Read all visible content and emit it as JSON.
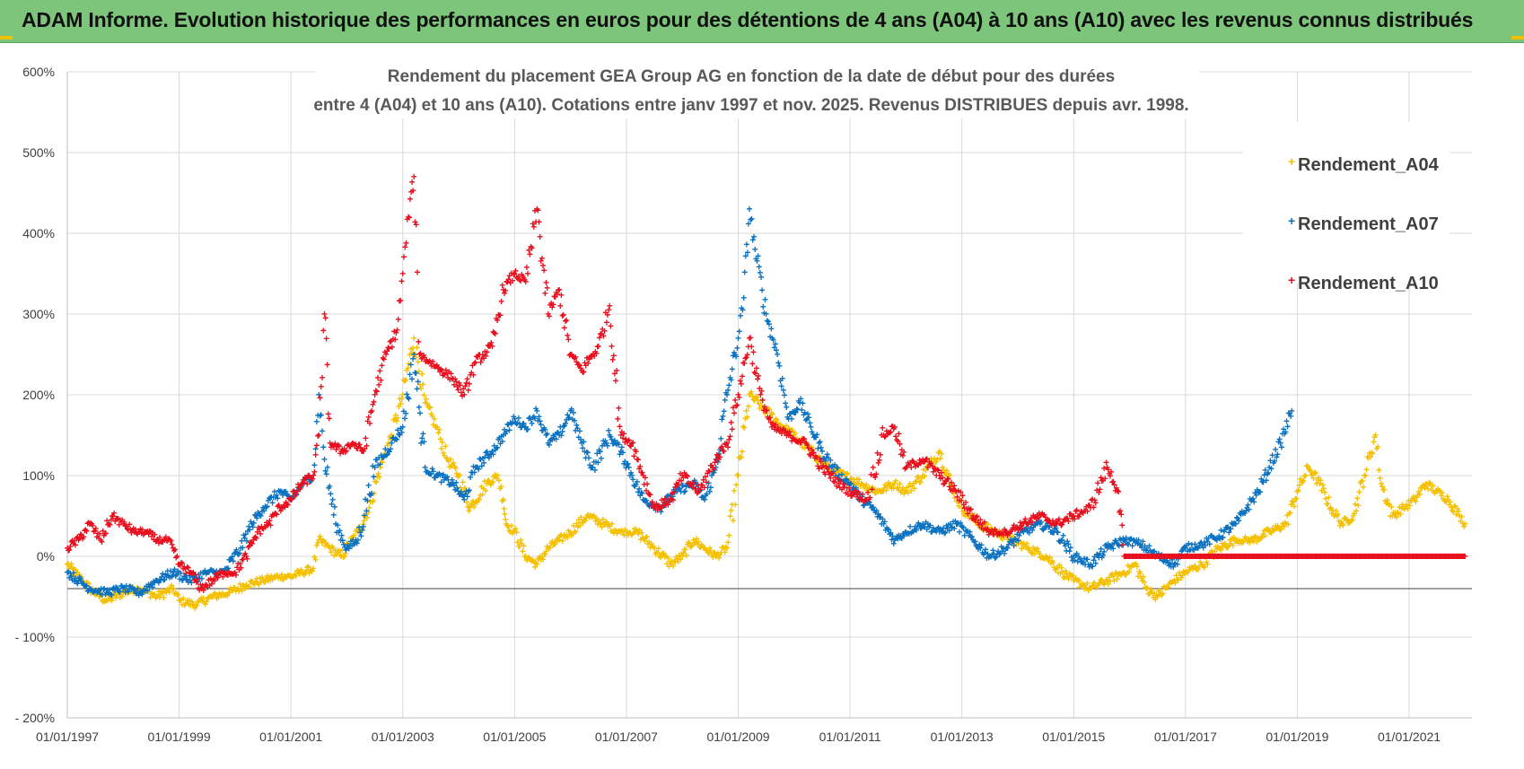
{
  "header": {
    "title": "ADAM Informe. Evolution historique des performances en euros pour des détentions de 4 ans (A04) à 10 ans (A10) avec les revenus connus distribués"
  },
  "colors": {
    "banner": "#7dc57a",
    "A04": "#f5c000",
    "A07": "#0b72c1",
    "A10": "#e8101e",
    "grid": "#d9d9d9"
  },
  "chart_data": {
    "type": "scatter",
    "title_line1": "Rendement du placement GEA Group AG en fonction de la date de début pour des durées",
    "title_line2": "entre 4 (A04) et 10 ans (A10). Cotations entre janv 1997 et nov. 2025. Revenus DISTRIBUES depuis avr. 1998.",
    "x_ticks": [
      "01/01/1997",
      "01/01/1999",
      "01/01/2001",
      "01/01/2003",
      "01/01/2005",
      "01/01/2007",
      "01/01/2009",
      "01/01/2011",
      "01/01/2013",
      "01/01/2015",
      "01/01/2017",
      "01/01/2019",
      "01/01/2021"
    ],
    "y_ticks": [
      "600%",
      "500%",
      "400%",
      "300%",
      "200%",
      "100%",
      "0%",
      "- 100%",
      "- 200%"
    ],
    "xlim": [
      "1997-01-01",
      "2022-02-15"
    ],
    "ylim": [
      -200,
      600
    ],
    "legend_position": "top-right",
    "grid": true,
    "series": [
      {
        "name": "Rendement_A04",
        "color_key": "A04",
        "points": [
          [
            1997.0,
            -10
          ],
          [
            1997.2,
            -25
          ],
          [
            1997.4,
            -40
          ],
          [
            1997.7,
            -55
          ],
          [
            1998.0,
            -45
          ],
          [
            1998.3,
            -40
          ],
          [
            1998.6,
            -50
          ],
          [
            1998.9,
            -40
          ],
          [
            1999.0,
            -55
          ],
          [
            1999.3,
            -60
          ],
          [
            1999.6,
            -50
          ],
          [
            1999.9,
            -45
          ],
          [
            2000.2,
            -35
          ],
          [
            2000.5,
            -30
          ],
          [
            2000.8,
            -25
          ],
          [
            2001.0,
            -25
          ],
          [
            2001.2,
            -20
          ],
          [
            2001.4,
            -15
          ],
          [
            2001.5,
            20
          ],
          [
            2001.7,
            10
          ],
          [
            2001.9,
            0
          ],
          [
            2002.2,
            30
          ],
          [
            2002.4,
            60
          ],
          [
            2002.6,
            110
          ],
          [
            2002.8,
            150
          ],
          [
            2003.0,
            200
          ],
          [
            2003.2,
            270
          ],
          [
            2003.4,
            190
          ],
          [
            2003.6,
            160
          ],
          [
            2003.8,
            120
          ],
          [
            2004.0,
            100
          ],
          [
            2004.2,
            60
          ],
          [
            2004.5,
            90
          ],
          [
            2004.7,
            100
          ],
          [
            2004.8,
            70
          ],
          [
            2004.85,
            40
          ],
          [
            2005.0,
            30
          ],
          [
            2005.2,
            0
          ],
          [
            2005.4,
            -10
          ],
          [
            2005.6,
            10
          ],
          [
            2005.8,
            20
          ],
          [
            2006.0,
            30
          ],
          [
            2006.3,
            50
          ],
          [
            2006.6,
            40
          ],
          [
            2006.9,
            30
          ],
          [
            2007.2,
            30
          ],
          [
            2007.5,
            10
          ],
          [
            2007.8,
            -10
          ],
          [
            2008.0,
            0
          ],
          [
            2008.2,
            20
          ],
          [
            2008.4,
            10
          ],
          [
            2008.6,
            0
          ],
          [
            2008.8,
            10
          ],
          [
            2009.0,
            100
          ],
          [
            2009.2,
            200
          ],
          [
            2009.5,
            180
          ],
          [
            2009.8,
            160
          ],
          [
            2010.0,
            150
          ],
          [
            2010.3,
            130
          ],
          [
            2010.6,
            110
          ],
          [
            2010.9,
            100
          ],
          [
            2011.2,
            90
          ],
          [
            2011.5,
            80
          ],
          [
            2011.8,
            90
          ],
          [
            2012.0,
            80
          ],
          [
            2012.3,
            100
          ],
          [
            2012.6,
            130
          ],
          [
            2012.8,
            90
          ],
          [
            2013.0,
            60
          ],
          [
            2013.3,
            40
          ],
          [
            2013.6,
            30
          ],
          [
            2013.9,
            20
          ],
          [
            2014.2,
            10
          ],
          [
            2014.5,
            0
          ],
          [
            2014.8,
            -20
          ],
          [
            2015.0,
            -30
          ],
          [
            2015.3,
            -40
          ],
          [
            2015.6,
            -30
          ],
          [
            2015.9,
            -20
          ],
          [
            2016.1,
            -10
          ],
          [
            2016.3,
            -40
          ],
          [
            2016.5,
            -50
          ],
          [
            2016.8,
            -30
          ],
          [
            2017.0,
            -20
          ],
          [
            2017.3,
            -10
          ],
          [
            2017.6,
            10
          ],
          [
            2017.9,
            20
          ],
          [
            2018.2,
            20
          ],
          [
            2018.5,
            30
          ],
          [
            2018.8,
            40
          ],
          [
            2019.0,
            80
          ],
          [
            2019.2,
            110
          ],
          [
            2019.4,
            90
          ],
          [
            2019.6,
            60
          ],
          [
            2019.8,
            40
          ],
          [
            2020.0,
            50
          ],
          [
            2020.2,
            100
          ],
          [
            2020.4,
            150
          ],
          [
            2020.5,
            90
          ],
          [
            2020.7,
            50
          ],
          [
            2020.9,
            60
          ],
          [
            2021.1,
            70
          ],
          [
            2021.3,
            90
          ],
          [
            2021.5,
            80
          ],
          [
            2021.7,
            70
          ],
          [
            2021.9,
            50
          ],
          [
            2022.0,
            40
          ]
        ]
      },
      {
        "name": "Rendement_A07",
        "color_key": "A07",
        "points": [
          [
            1997.0,
            -20
          ],
          [
            1997.2,
            -30
          ],
          [
            1997.4,
            -40
          ],
          [
            1997.7,
            -45
          ],
          [
            1998.0,
            -40
          ],
          [
            1998.3,
            -45
          ],
          [
            1998.6,
            -30
          ],
          [
            1998.9,
            -20
          ],
          [
            1999.2,
            -30
          ],
          [
            1999.5,
            -20
          ],
          [
            1999.8,
            -20
          ],
          [
            2000.1,
            10
          ],
          [
            2000.3,
            40
          ],
          [
            2000.5,
            60
          ],
          [
            2000.8,
            80
          ],
          [
            2001.0,
            70
          ],
          [
            2001.2,
            90
          ],
          [
            2001.4,
            100
          ],
          [
            2001.5,
            200
          ],
          [
            2001.6,
            120
          ],
          [
            2001.8,
            40
          ],
          [
            2002.0,
            10
          ],
          [
            2002.2,
            20
          ],
          [
            2002.5,
            110
          ],
          [
            2002.8,
            140
          ],
          [
            2003.0,
            160
          ],
          [
            2003.2,
            250
          ],
          [
            2003.4,
            110
          ],
          [
            2003.6,
            100
          ],
          [
            2003.9,
            90
          ],
          [
            2004.1,
            70
          ],
          [
            2004.3,
            110
          ],
          [
            2004.6,
            130
          ],
          [
            2004.8,
            150
          ],
          [
            2005.0,
            170
          ],
          [
            2005.2,
            160
          ],
          [
            2005.4,
            180
          ],
          [
            2005.6,
            140
          ],
          [
            2005.8,
            150
          ],
          [
            2006.0,
            180
          ],
          [
            2006.2,
            140
          ],
          [
            2006.4,
            110
          ],
          [
            2006.7,
            150
          ],
          [
            2006.9,
            130
          ],
          [
            2007.1,
            100
          ],
          [
            2007.3,
            70
          ],
          [
            2007.6,
            60
          ],
          [
            2007.9,
            80
          ],
          [
            2008.2,
            90
          ],
          [
            2008.4,
            70
          ],
          [
            2008.6,
            110
          ],
          [
            2008.8,
            200
          ],
          [
            2009.0,
            270
          ],
          [
            2009.1,
            320
          ],
          [
            2009.2,
            430
          ],
          [
            2009.3,
            380
          ],
          [
            2009.5,
            300
          ],
          [
            2009.7,
            250
          ],
          [
            2009.9,
            170
          ],
          [
            2010.1,
            190
          ],
          [
            2010.3,
            160
          ],
          [
            2010.5,
            130
          ],
          [
            2010.8,
            100
          ],
          [
            2011.0,
            90
          ],
          [
            2011.2,
            70
          ],
          [
            2011.4,
            60
          ],
          [
            2011.6,
            40
          ],
          [
            2011.8,
            20
          ],
          [
            2012.0,
            30
          ],
          [
            2012.3,
            40
          ],
          [
            2012.6,
            30
          ],
          [
            2012.9,
            40
          ],
          [
            2013.2,
            20
          ],
          [
            2013.5,
            0
          ],
          [
            2013.8,
            10
          ],
          [
            2014.1,
            30
          ],
          [
            2014.4,
            40
          ],
          [
            2014.7,
            30
          ],
          [
            2015.0,
            0
          ],
          [
            2015.3,
            -10
          ],
          [
            2015.6,
            10
          ],
          [
            2015.9,
            20
          ],
          [
            2016.2,
            15
          ],
          [
            2016.5,
            0
          ],
          [
            2016.8,
            -10
          ],
          [
            2017.0,
            10
          ],
          [
            2017.3,
            15
          ],
          [
            2017.6,
            25
          ],
          [
            2017.9,
            40
          ],
          [
            2018.1,
            60
          ],
          [
            2018.3,
            80
          ],
          [
            2018.5,
            110
          ],
          [
            2018.7,
            140
          ],
          [
            2018.9,
            180
          ]
        ]
      },
      {
        "name": "Rendement_A10",
        "color_key": "A10",
        "points": [
          [
            1997.0,
            10
          ],
          [
            1997.2,
            20
          ],
          [
            1997.4,
            40
          ],
          [
            1997.6,
            20
          ],
          [
            1997.8,
            50
          ],
          [
            1998.0,
            40
          ],
          [
            1998.2,
            30
          ],
          [
            1998.4,
            30
          ],
          [
            1998.6,
            20
          ],
          [
            1998.8,
            20
          ],
          [
            1999.0,
            -10
          ],
          [
            1999.2,
            -20
          ],
          [
            1999.4,
            -40
          ],
          [
            1999.6,
            -30
          ],
          [
            1999.8,
            -20
          ],
          [
            2000.0,
            -20
          ],
          [
            2000.2,
            0
          ],
          [
            2000.4,
            30
          ],
          [
            2000.6,
            40
          ],
          [
            2000.8,
            60
          ],
          [
            2001.0,
            70
          ],
          [
            2001.2,
            90
          ],
          [
            2001.4,
            100
          ],
          [
            2001.5,
            150
          ],
          [
            2001.6,
            300
          ],
          [
            2001.7,
            140
          ],
          [
            2001.9,
            130
          ],
          [
            2002.1,
            140
          ],
          [
            2002.3,
            130
          ],
          [
            2002.5,
            200
          ],
          [
            2002.7,
            250
          ],
          [
            2002.9,
            280
          ],
          [
            2003.0,
            350
          ],
          [
            2003.1,
            420
          ],
          [
            2003.2,
            470
          ],
          [
            2003.3,
            250
          ],
          [
            2003.5,
            240
          ],
          [
            2003.7,
            230
          ],
          [
            2003.9,
            220
          ],
          [
            2004.1,
            200
          ],
          [
            2004.3,
            240
          ],
          [
            2004.6,
            260
          ],
          [
            2004.8,
            330
          ],
          [
            2005.0,
            350
          ],
          [
            2005.2,
            340
          ],
          [
            2005.4,
            430
          ],
          [
            2005.6,
            300
          ],
          [
            2005.8,
            330
          ],
          [
            2006.0,
            250
          ],
          [
            2006.2,
            230
          ],
          [
            2006.5,
            260
          ],
          [
            2006.7,
            310
          ],
          [
            2006.9,
            150
          ],
          [
            2007.1,
            140
          ],
          [
            2007.3,
            100
          ],
          [
            2007.5,
            60
          ],
          [
            2007.8,
            70
          ],
          [
            2008.0,
            100
          ],
          [
            2008.3,
            80
          ],
          [
            2008.6,
            120
          ],
          [
            2008.8,
            140
          ],
          [
            2009.0,
            200
          ],
          [
            2009.2,
            270
          ],
          [
            2009.4,
            200
          ],
          [
            2009.6,
            160
          ],
          [
            2009.9,
            150
          ],
          [
            2010.2,
            140
          ],
          [
            2010.5,
            110
          ],
          [
            2010.8,
            90
          ],
          [
            2011.0,
            80
          ],
          [
            2011.3,
            70
          ],
          [
            2011.6,
            150
          ],
          [
            2011.8,
            160
          ],
          [
            2012.0,
            110
          ],
          [
            2012.3,
            120
          ],
          [
            2012.6,
            100
          ],
          [
            2012.9,
            80
          ],
          [
            2013.2,
            50
          ],
          [
            2013.5,
            30
          ],
          [
            2013.8,
            30
          ],
          [
            2014.1,
            40
          ],
          [
            2014.4,
            50
          ],
          [
            2014.7,
            40
          ],
          [
            2015.0,
            50
          ],
          [
            2015.3,
            60
          ],
          [
            2015.6,
            110
          ],
          [
            2015.8,
            80
          ],
          [
            2015.9,
            0
          ],
          [
            2016.5,
            0
          ],
          [
            2017.0,
            0
          ],
          [
            2017.5,
            0
          ],
          [
            2018.0,
            0
          ],
          [
            2018.5,
            0
          ],
          [
            2019.0,
            0
          ],
          [
            2019.5,
            0
          ],
          [
            2020.0,
            0
          ],
          [
            2020.5,
            0
          ],
          [
            2021.0,
            0
          ],
          [
            2021.5,
            0
          ],
          [
            2022.0,
            0
          ]
        ]
      }
    ]
  }
}
